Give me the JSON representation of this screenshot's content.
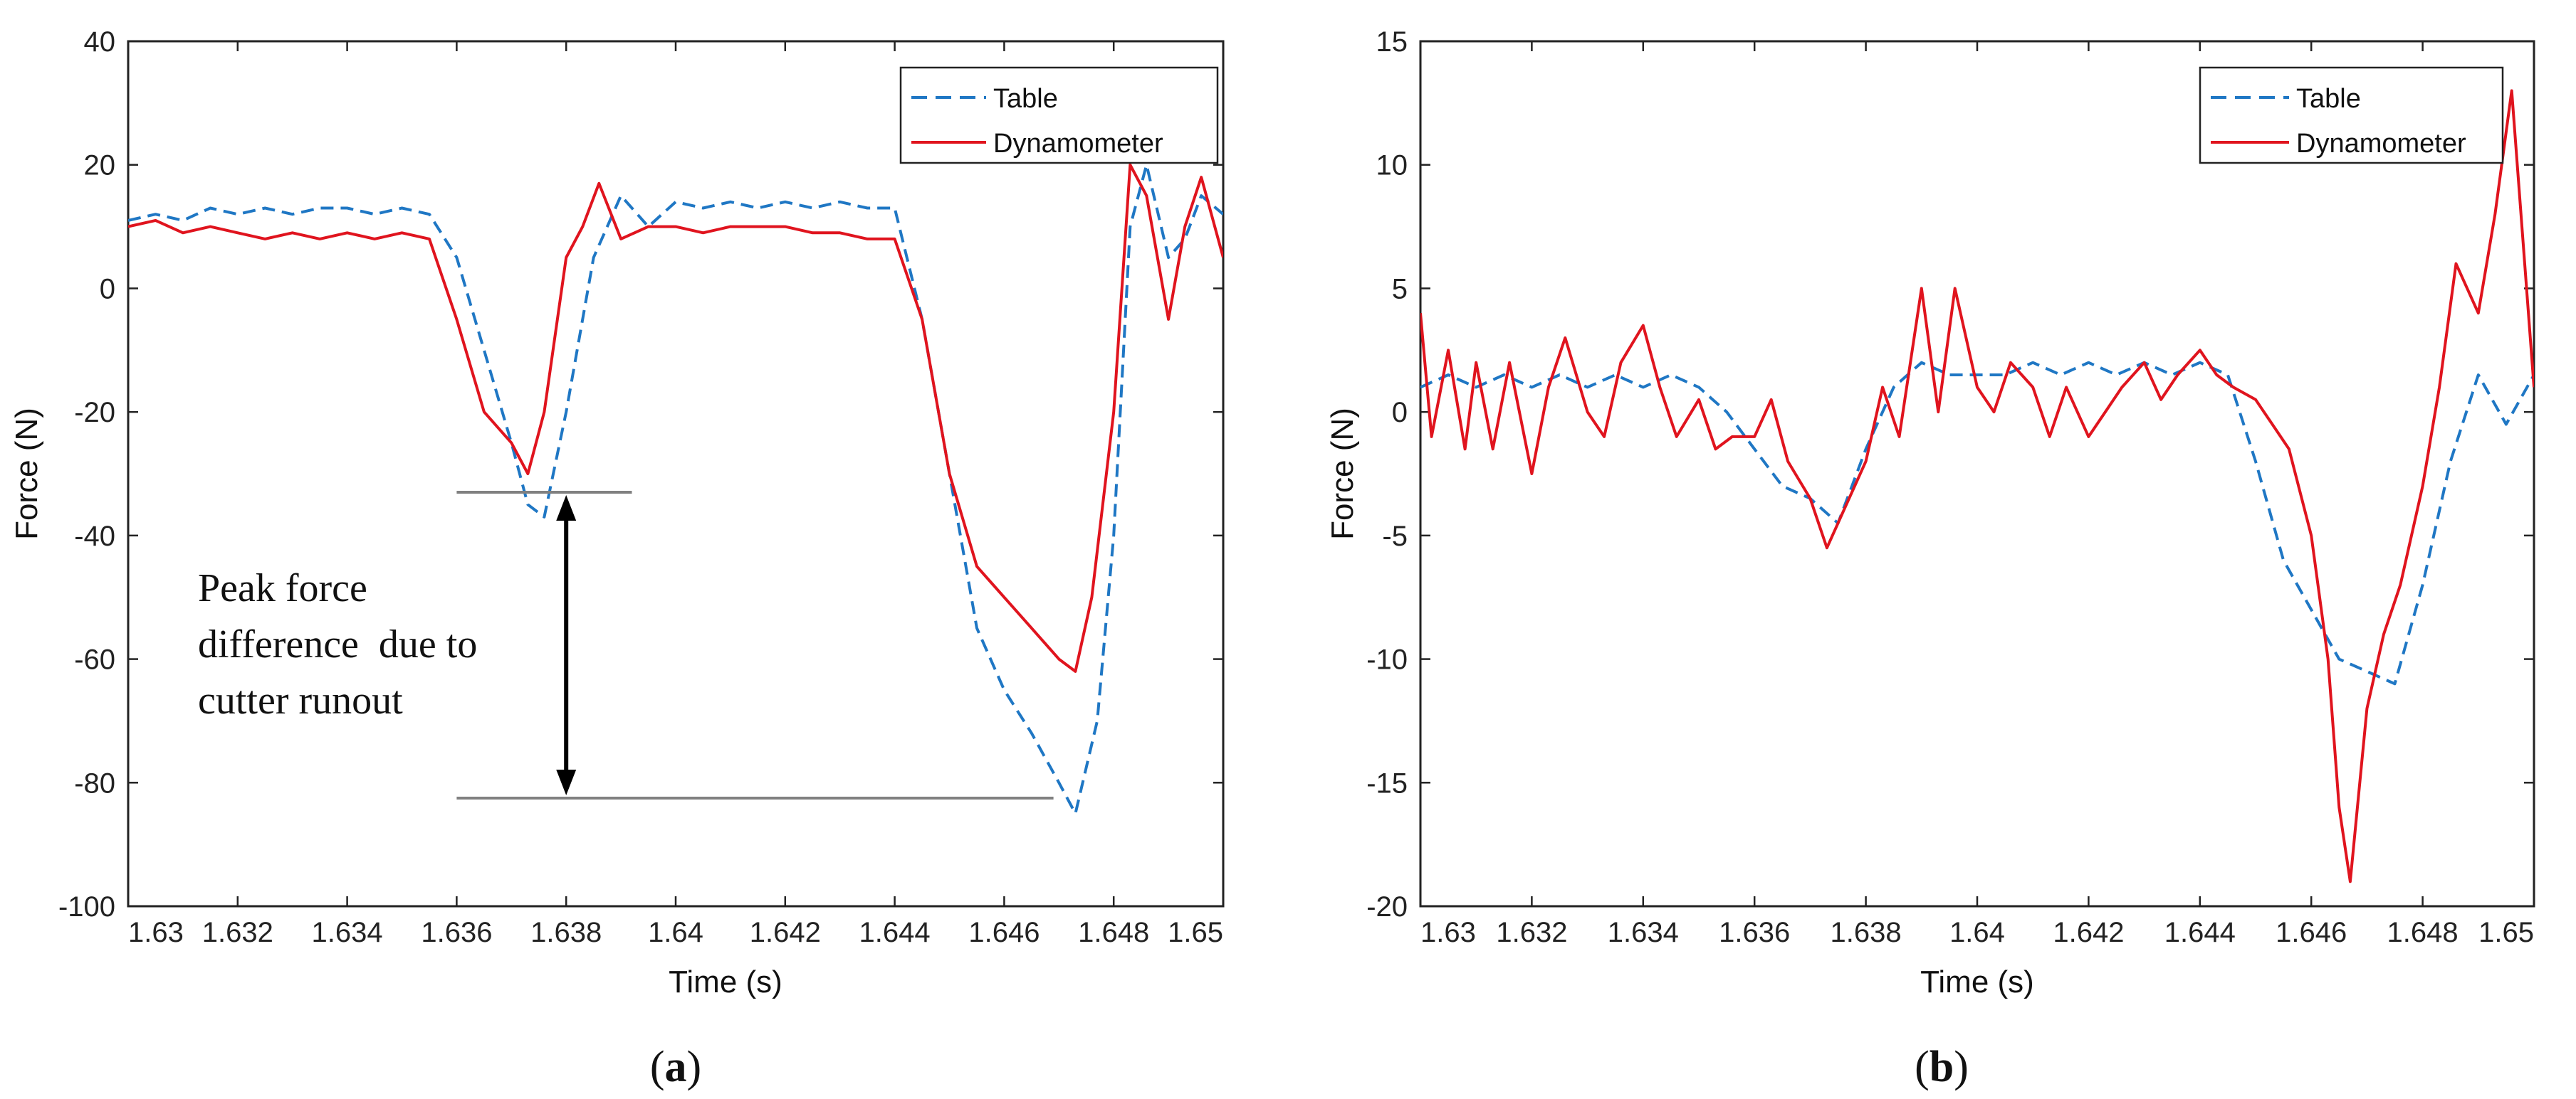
{
  "chart_data": [
    {
      "type": "line",
      "panel_label": "a",
      "xlabel": "Time (s)",
      "ylabel": "Force (N)",
      "xlim": [
        1.63,
        1.65
      ],
      "ylim": [
        -100,
        40
      ],
      "xticks": [
        1.63,
        1.632,
        1.634,
        1.636,
        1.638,
        1.64,
        1.642,
        1.644,
        1.646,
        1.648,
        1.65
      ],
      "xtick_labels": [
        "1.63",
        "1.632",
        "1.634",
        "1.636",
        "1.638",
        "1.64",
        "1.642",
        "1.644",
        "1.646",
        "1.648",
        "1.65"
      ],
      "yticks": [
        40,
        20,
        0,
        -20,
        -40,
        -60,
        -80,
        -100
      ],
      "ytick_labels": [
        "40",
        "20",
        "0",
        "-20",
        "-40",
        "-60",
        "-80",
        "-100"
      ],
      "grid": false,
      "legend": "top-right",
      "series": [
        {
          "name": "Table",
          "style": "dashed",
          "color": "#1f77c4",
          "x": [
            1.63,
            1.6305,
            1.631,
            1.6315,
            1.632,
            1.6325,
            1.633,
            1.6335,
            1.634,
            1.6345,
            1.635,
            1.6355,
            1.636,
            1.6365,
            1.637,
            1.6373,
            1.6376,
            1.638,
            1.6385,
            1.639,
            1.6395,
            1.64,
            1.6405,
            1.641,
            1.6415,
            1.642,
            1.6425,
            1.643,
            1.6435,
            1.644,
            1.6445,
            1.645,
            1.6455,
            1.646,
            1.6465,
            1.647,
            1.6473,
            1.6477,
            1.648,
            1.6483,
            1.6486,
            1.649,
            1.6493,
            1.6496,
            1.65
          ],
          "values": [
            11,
            12,
            11,
            13,
            12,
            13,
            12,
            13,
            13,
            12,
            13,
            12,
            5,
            -10,
            -25,
            -35,
            -37,
            -20,
            5,
            15,
            10,
            14,
            13,
            14,
            13,
            14,
            13,
            14,
            13,
            13,
            -5,
            -30,
            -55,
            -65,
            -72,
            -80,
            -85,
            -70,
            -40,
            10,
            20,
            5,
            8,
            15,
            12
          ]
        },
        {
          "name": "Dynamometer",
          "style": "solid",
          "color": "#e0141e",
          "x": [
            1.63,
            1.6305,
            1.631,
            1.6315,
            1.632,
            1.6325,
            1.633,
            1.6335,
            1.634,
            1.6345,
            1.635,
            1.6355,
            1.636,
            1.6365,
            1.637,
            1.6373,
            1.6376,
            1.638,
            1.6383,
            1.6386,
            1.639,
            1.6395,
            1.64,
            1.6405,
            1.641,
            1.6415,
            1.642,
            1.6425,
            1.643,
            1.6435,
            1.644,
            1.6445,
            1.645,
            1.6455,
            1.646,
            1.6465,
            1.647,
            1.6473,
            1.6476,
            1.648,
            1.6483,
            1.6486,
            1.649,
            1.6493,
            1.6496,
            1.65
          ],
          "values": [
            10,
            11,
            9,
            10,
            9,
            8,
            9,
            8,
            9,
            8,
            9,
            8,
            -5,
            -20,
            -25,
            -30,
            -20,
            5,
            10,
            17,
            8,
            10,
            10,
            9,
            10,
            10,
            10,
            9,
            9,
            8,
            8,
            -5,
            -30,
            -45,
            -50,
            -55,
            -60,
            -62,
            -50,
            -20,
            20,
            15,
            -5,
            10,
            18,
            5
          ]
        }
      ],
      "annotation": {
        "lines": [
          "Peak force",
          "difference  due to",
          "cutter runout"
        ],
        "y_top": -33,
        "y_bottom": -82.5
      }
    },
    {
      "type": "line",
      "panel_label": "b",
      "xlabel": "Time (s)",
      "ylabel": "Force (N)",
      "xlim": [
        1.63,
        1.65
      ],
      "ylim": [
        -20,
        15
      ],
      "xticks": [
        1.63,
        1.632,
        1.634,
        1.636,
        1.638,
        1.64,
        1.642,
        1.644,
        1.646,
        1.648,
        1.65
      ],
      "xtick_labels": [
        "1.63",
        "1.632",
        "1.634",
        "1.636",
        "1.638",
        "1.64",
        "1.642",
        "1.644",
        "1.646",
        "1.648",
        "1.65"
      ],
      "yticks": [
        15,
        10,
        5,
        0,
        -5,
        -10,
        -15,
        -20
      ],
      "ytick_labels": [
        "15",
        "10",
        "5",
        "0",
        "-5",
        "-10",
        "-15",
        "-20"
      ],
      "grid": false,
      "legend": "top-right",
      "series": [
        {
          "name": "Table",
          "style": "dashed",
          "color": "#1f77c4",
          "x": [
            1.63,
            1.6305,
            1.631,
            1.6315,
            1.632,
            1.6325,
            1.633,
            1.6335,
            1.634,
            1.6345,
            1.635,
            1.6355,
            1.636,
            1.6365,
            1.637,
            1.6375,
            1.638,
            1.6385,
            1.639,
            1.6395,
            1.64,
            1.6405,
            1.641,
            1.6415,
            1.642,
            1.6425,
            1.643,
            1.6435,
            1.644,
            1.6445,
            1.645,
            1.6455,
            1.646,
            1.6465,
            1.647,
            1.6475,
            1.648,
            1.6485,
            1.649,
            1.6495,
            1.65
          ],
          "values": [
            1,
            1.5,
            1,
            1.5,
            1,
            1.5,
            1,
            1.5,
            1,
            1.5,
            1,
            0,
            -1.5,
            -3,
            -3.5,
            -4.5,
            -1.5,
            1,
            2,
            1.5,
            1.5,
            1.5,
            2,
            1.5,
            2,
            1.5,
            2,
            1.5,
            2,
            1.5,
            -2,
            -6,
            -8,
            -10,
            -10.5,
            -11,
            -7,
            -2,
            1.5,
            -0.5,
            1.5
          ]
        },
        {
          "name": "Dynamometer",
          "style": "solid",
          "color": "#e0141e",
          "x": [
            1.63,
            1.6302,
            1.6305,
            1.6308,
            1.631,
            1.6313,
            1.6316,
            1.632,
            1.6323,
            1.6326,
            1.633,
            1.6333,
            1.6336,
            1.634,
            1.6343,
            1.6346,
            1.635,
            1.6353,
            1.6356,
            1.636,
            1.6363,
            1.6366,
            1.637,
            1.6373,
            1.6376,
            1.638,
            1.6383,
            1.6386,
            1.639,
            1.6393,
            1.6396,
            1.64,
            1.6403,
            1.6406,
            1.641,
            1.6413,
            1.6416,
            1.642,
            1.6423,
            1.6426,
            1.643,
            1.6433,
            1.6436,
            1.644,
            1.6443,
            1.6446,
            1.645,
            1.6453,
            1.6456,
            1.646,
            1.6463,
            1.6465,
            1.6467,
            1.647,
            1.6473,
            1.6476,
            1.648,
            1.6483,
            1.6486,
            1.649,
            1.6493,
            1.6496,
            1.65
          ],
          "values": [
            4,
            -1,
            2.5,
            -1.5,
            2,
            -1.5,
            2,
            -2.5,
            1,
            3,
            0,
            -1,
            2,
            3.5,
            1,
            -1,
            0.5,
            -1.5,
            -1,
            -1,
            0.5,
            -2,
            -3.5,
            -5.5,
            -4,
            -2,
            1,
            -1,
            5,
            0,
            5,
            1,
            0,
            2,
            1,
            -1,
            1,
            -1,
            0,
            1,
            2,
            0.5,
            1.5,
            2.5,
            1.5,
            1,
            0.5,
            -0.5,
            -1.5,
            -5,
            -10,
            -16,
            -19,
            -12,
            -9,
            -7,
            -3,
            1,
            6,
            4,
            8,
            13,
            1
          ]
        }
      ]
    }
  ]
}
